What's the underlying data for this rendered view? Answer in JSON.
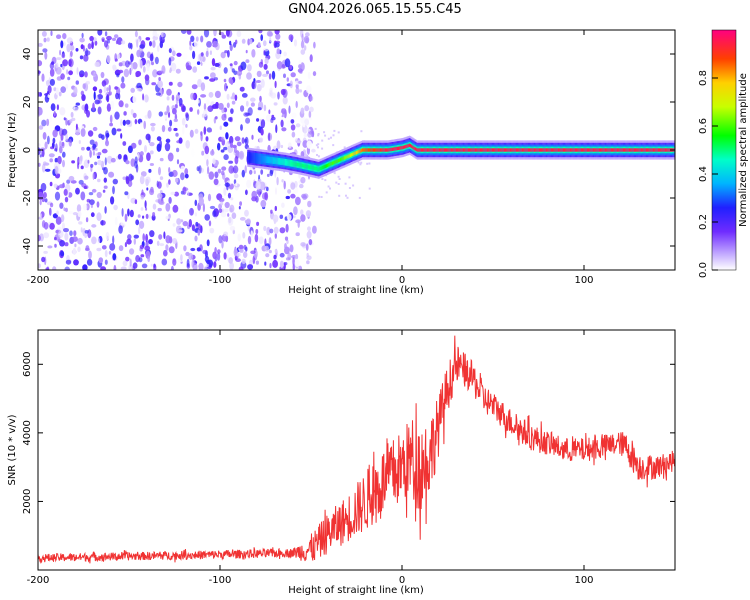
{
  "title": "GN04.2026.065.15.55.C45",
  "colors": {
    "signal": "#f03232",
    "noise": "#7a3cf0",
    "background": "#ffffff"
  },
  "chart_data": [
    {
      "type": "heatmap",
      "name": "spectrogram",
      "xlabel": "Height of straight line (km)",
      "ylabel": "Frequency (Hz)",
      "xlim": [
        -200,
        150
      ],
      "ylim": [
        -50,
        50
      ],
      "xticks": [
        -200,
        -100,
        0,
        100
      ],
      "yticks": [
        -40,
        -20,
        0,
        20,
        40
      ],
      "colorbar": {
        "label": "Normalized spectral amplitude",
        "range": [
          0,
          1
        ],
        "ticks": [
          "0.0",
          "0.2",
          "0.4",
          "0.6",
          "0.8"
        ]
      },
      "track": {
        "x": [
          -85,
          -75,
          -65,
          -58,
          -52,
          -46,
          -40,
          -34,
          -28,
          -22,
          -15,
          -8,
          0,
          4,
          8,
          12,
          150
        ],
        "freq": [
          -3,
          -4,
          -5,
          -6,
          -7,
          -8,
          -6,
          -4,
          -2,
          0,
          0,
          0,
          1,
          2,
          0,
          0,
          0
        ],
        "amplitude": [
          0.25,
          0.35,
          0.45,
          0.5,
          0.5,
          0.5,
          0.6,
          0.6,
          0.7,
          0.85,
          0.9,
          0.95,
          0.95,
          0.95,
          0.95,
          0.95,
          0.95
        ]
      },
      "noise_region": {
        "x_from": -200,
        "x_to": -48,
        "amplitude_range": [
          0.0,
          0.25
        ]
      }
    },
    {
      "type": "line",
      "name": "snr",
      "xlabel": "Height of straight line (km)",
      "ylabel": "SNR (10 * v/v)",
      "xlim": [
        -200,
        150
      ],
      "ylim": [
        0,
        7000
      ],
      "xticks": [
        -200,
        -100,
        0,
        100
      ],
      "yticks": [
        2000,
        4000,
        6000
      ],
      "series": [
        {
          "name": "SNR",
          "x": [
            -200,
            -150,
            -100,
            -60,
            -50,
            -40,
            -30,
            -20,
            -10,
            0,
            5,
            10,
            15,
            20,
            25,
            30,
            35,
            40,
            45,
            50,
            60,
            70,
            80,
            90,
            100,
            110,
            120,
            125,
            130,
            140,
            150
          ],
          "y": [
            350,
            400,
            450,
            500,
            600,
            1100,
            1500,
            2000,
            2600,
            3000,
            3300,
            3000,
            3300,
            4200,
            5300,
            6000,
            5800,
            5500,
            5000,
            4800,
            4300,
            3900,
            3700,
            3500,
            3500,
            3600,
            3700,
            3500,
            3000,
            3000,
            3200
          ],
          "noise_amplitude": [
            120,
            120,
            130,
            130,
            450,
            600,
            700,
            900,
            1000,
            1100,
            1200,
            1400,
            1200,
            900,
            700,
            600,
            500,
            500,
            450,
            400,
            400,
            400,
            350,
            350,
            350,
            350,
            350,
            500,
            400,
            350,
            300
          ]
        }
      ]
    }
  ]
}
